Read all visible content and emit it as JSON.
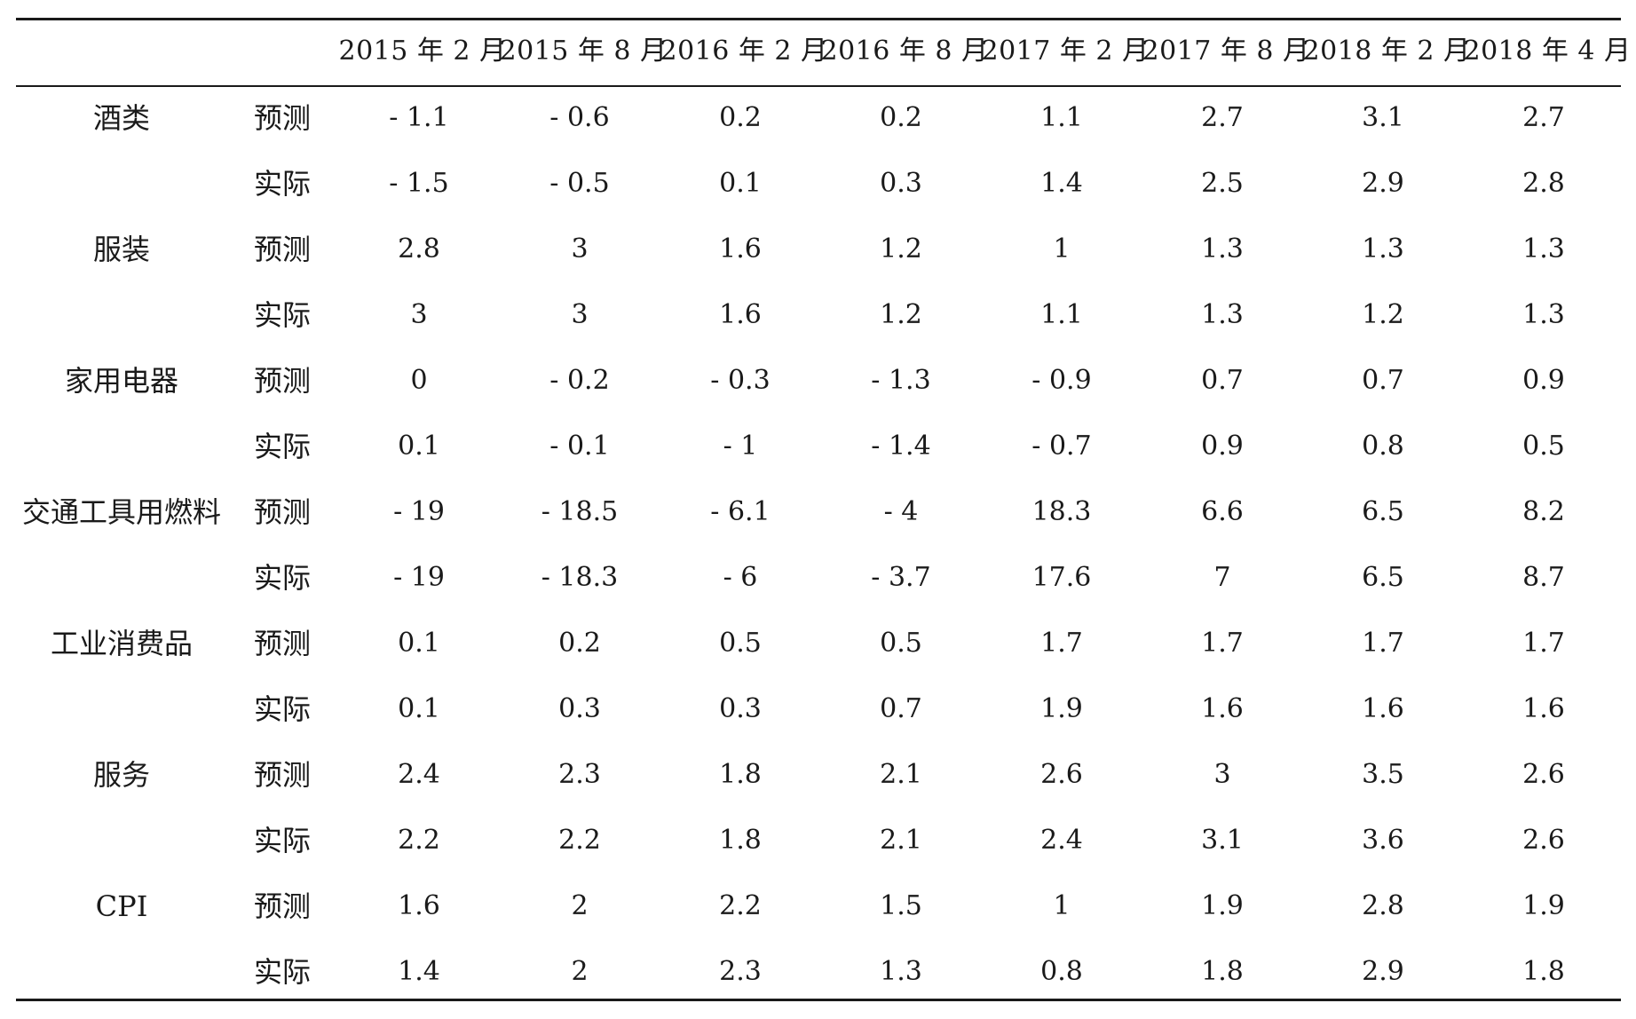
{
  "table": {
    "columns": [
      "",
      "",
      "2015 年 2 月",
      "2015 年 8 月",
      "2016 年 2 月",
      "2016 年 8 月",
      "2017 年 2 月",
      "2017 年 8 月",
      "2018 年 2 月",
      "2018 年 4 月"
    ],
    "rows": [
      {
        "category": "酒类",
        "type": "预测",
        "values": [
          "- 1.1",
          "- 0.6",
          "0.2",
          "0.2",
          "1.1",
          "2.7",
          "3.1",
          "2.7"
        ]
      },
      {
        "category": "",
        "type": "实际",
        "values": [
          "- 1.5",
          "- 0.5",
          "0.1",
          "0.3",
          "1.4",
          "2.5",
          "2.9",
          "2.8"
        ]
      },
      {
        "category": "服装",
        "type": "预测",
        "values": [
          "2.8",
          "3",
          "1.6",
          "1.2",
          "1",
          "1.3",
          "1.3",
          "1.3"
        ]
      },
      {
        "category": "",
        "type": "实际",
        "values": [
          "3",
          "3",
          "1.6",
          "1.2",
          "1.1",
          "1.3",
          "1.2",
          "1.3"
        ]
      },
      {
        "category": "家用电器",
        "type": "预测",
        "values": [
          "0",
          "- 0.2",
          "- 0.3",
          "- 1.3",
          "- 0.9",
          "0.7",
          "0.7",
          "0.9"
        ]
      },
      {
        "category": "",
        "type": "实际",
        "values": [
          "0.1",
          "- 0.1",
          "- 1",
          "- 1.4",
          "- 0.7",
          "0.9",
          "0.8",
          "0.5"
        ]
      },
      {
        "category": "交通工具用燃料",
        "type": "预测",
        "values": [
          "- 19",
          "- 18.5",
          "- 6.1",
          "- 4",
          "18.3",
          "6.6",
          "6.5",
          "8.2"
        ]
      },
      {
        "category": "",
        "type": "实际",
        "values": [
          "- 19",
          "- 18.3",
          "- 6",
          "- 3.7",
          "17.6",
          "7",
          "6.5",
          "8.7"
        ]
      },
      {
        "category": "工业消费品",
        "type": "预测",
        "values": [
          "0.1",
          "0.2",
          "0.5",
          "0.5",
          "1.7",
          "1.7",
          "1.7",
          "1.7"
        ]
      },
      {
        "category": "",
        "type": "实际",
        "values": [
          "0.1",
          "0.3",
          "0.3",
          "0.7",
          "1.9",
          "1.6",
          "1.6",
          "1.6"
        ]
      },
      {
        "category": "服务",
        "type": "预测",
        "values": [
          "2.4",
          "2.3",
          "1.8",
          "2.1",
          "2.6",
          "3",
          "3.5",
          "2.6"
        ]
      },
      {
        "category": "",
        "type": "实际",
        "values": [
          "2.2",
          "2.2",
          "1.8",
          "2.1",
          "2.4",
          "3.1",
          "3.6",
          "2.6"
        ]
      },
      {
        "category": "CPI",
        "type": "预测",
        "values": [
          "1.6",
          "2",
          "2.2",
          "1.5",
          "1",
          "1.9",
          "2.8",
          "1.9"
        ]
      },
      {
        "category": "",
        "type": "实际",
        "values": [
          "1.4",
          "2",
          "2.3",
          "1.3",
          "0.8",
          "1.8",
          "2.9",
          "1.8"
        ]
      }
    ]
  }
}
